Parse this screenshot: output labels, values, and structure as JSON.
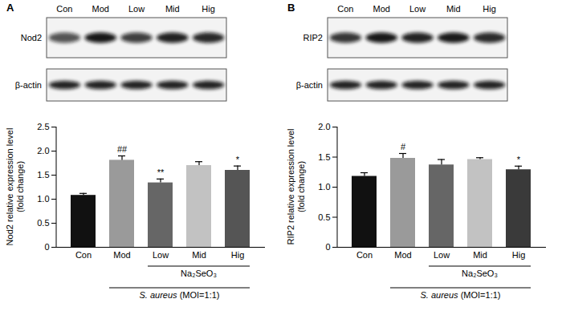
{
  "chart_data": [
    {
      "type": "bar",
      "title": "A",
      "blot": {
        "lanes": [
          "Con",
          "Mod",
          "Low",
          "Mid",
          "Hig"
        ],
        "rows": [
          "Nod2",
          "β-actin"
        ]
      },
      "categories": [
        "Con",
        "Mod",
        "Low",
        "Mid",
        "Hig"
      ],
      "values": [
        1.08,
        1.81,
        1.34,
        1.7,
        1.6
      ],
      "errors": [
        0.04,
        0.09,
        0.08,
        0.08,
        0.09
      ],
      "significance": [
        null,
        "##",
        "**",
        null,
        "*"
      ],
      "colors": [
        "#111111",
        "#9a9a9a",
        "#666666",
        "#c2c2c2",
        "#555555"
      ],
      "y_label": "Nod2 relative expression level\n(fold change)",
      "ylim": [
        0,
        2.5
      ],
      "yticks": [
        0,
        0.5,
        {
          "value": 1,
          "label": "1.0"
        },
        1.5,
        {
          "value": 2,
          "label": "2.0"
        },
        2.5
      ],
      "grid": false,
      "annotations": [
        {
          "text": "Na₂SeO₃",
          "from": "Low",
          "to": "Hig"
        },
        {
          "text": "S. aureus (MOI=1:1)",
          "from": "Mod",
          "to": "Hig"
        }
      ]
    },
    {
      "type": "bar",
      "title": "B",
      "blot": {
        "lanes": [
          "Con",
          "Mod",
          "Low",
          "Mid",
          "Hig"
        ],
        "rows": [
          "RIP2",
          "β-actin"
        ]
      },
      "categories": [
        "Con",
        "Mod",
        "Low",
        "Mid",
        "Hig"
      ],
      "values": [
        1.18,
        1.48,
        1.37,
        1.46,
        1.29
      ],
      "errors": [
        0.06,
        0.08,
        0.09,
        0.03,
        0.06
      ],
      "significance": [
        null,
        "#",
        null,
        null,
        "*"
      ],
      "colors": [
        "#111111",
        "#9a9a9a",
        "#666666",
        "#c2c2c2",
        "#3a3a3a"
      ],
      "y_label": "RIP2 relative expression level\n(fold change)",
      "ylim": [
        0,
        2
      ],
      "yticks": [
        0,
        0.5,
        {
          "value": 1,
          "label": "1.0"
        },
        1.5,
        {
          "value": 2,
          "label": "2.0"
        }
      ],
      "grid": false,
      "annotations": [
        {
          "text": "Na₂SeO₃",
          "from": "Low",
          "to": "Hig"
        },
        {
          "text": "S. aureus (MOI=1:1)",
          "from": "Mod",
          "to": "Hig"
        }
      ]
    }
  ]
}
